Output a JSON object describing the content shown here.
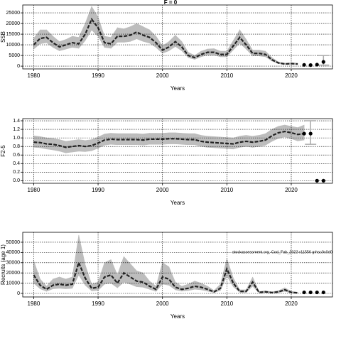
{
  "chart_data": [
    {
      "type": "band-line",
      "title": "F = 0",
      "xlabel": "Years",
      "ylabel": "SSB",
      "x": [
        1980,
        1981,
        1982,
        1983,
        1984,
        1985,
        1986,
        1987,
        1988,
        1989,
        1990,
        1991,
        1992,
        1993,
        1994,
        1995,
        1996,
        1997,
        1998,
        1999,
        2000,
        2001,
        2002,
        2003,
        2004,
        2005,
        2006,
        2007,
        2008,
        2009,
        2010,
        2011,
        2012,
        2013,
        2014,
        2015,
        2016,
        2017,
        2018,
        2019,
        2020,
        2021
      ],
      "values": [
        10000,
        13000,
        13500,
        11000,
        9000,
        10000,
        11000,
        10500,
        15000,
        22000,
        18000,
        11000,
        10500,
        14000,
        14000,
        14500,
        16000,
        14500,
        13500,
        11000,
        7500,
        9000,
        11500,
        9000,
        5000,
        4000,
        5500,
        6500,
        6500,
        5500,
        5500,
        9500,
        13500,
        10000,
        6000,
        6000,
        5500,
        3000,
        1500,
        1000,
        1200,
        1000
      ],
      "lower": [
        8000,
        10500,
        11000,
        8800,
        7200,
        8000,
        8800,
        8400,
        12000,
        17000,
        14000,
        8800,
        8400,
        11200,
        11200,
        11600,
        12800,
        11600,
        10800,
        8800,
        6000,
        7200,
        9200,
        7200,
        4000,
        3200,
        4400,
        5200,
        5200,
        4400,
        4400,
        7600,
        10800,
        8000,
        4800,
        4800,
        4400,
        2400,
        1200,
        800,
        900,
        700
      ],
      "upper": [
        13000,
        17000,
        17000,
        14000,
        11500,
        12500,
        14000,
        13500,
        20000,
        28000,
        23000,
        14000,
        13500,
        18000,
        17500,
        18500,
        20000,
        18500,
        17000,
        14000,
        9500,
        11500,
        14500,
        11500,
        6500,
        5000,
        7000,
        8000,
        8200,
        7000,
        7000,
        12000,
        17000,
        12500,
        7500,
        7500,
        7000,
        4000,
        2000,
        1400,
        1600,
        1400
      ],
      "points_x": [
        2022,
        2023,
        2024,
        2025
      ],
      "points": [
        600,
        500,
        700,
        2000
      ],
      "errorbar": {
        "x": 2025,
        "low": 500,
        "high": 5000
      },
      "xlim": [
        1978.3,
        2026.4
      ],
      "xticks": [
        1980,
        1990,
        2000,
        2010,
        2020
      ],
      "ylim": [
        -1300,
        28700
      ],
      "yticks": [
        0,
        5000,
        10000,
        15000,
        20000,
        25000
      ],
      "grid": true,
      "line_color": "#222222",
      "band_color": "#bdbdbd",
      "point_color": "#000000"
    },
    {
      "type": "band-line",
      "xlabel": "Years",
      "ylabel": "F2-5",
      "x": [
        1980,
        1981,
        1982,
        1983,
        1984,
        1985,
        1986,
        1987,
        1988,
        1989,
        1990,
        1991,
        1992,
        1993,
        1994,
        1995,
        1996,
        1997,
        1998,
        1999,
        2000,
        2001,
        2002,
        2003,
        2004,
        2005,
        2006,
        2007,
        2008,
        2009,
        2010,
        2011,
        2012,
        2013,
        2014,
        2015,
        2016,
        2017,
        2018,
        2019,
        2020,
        2021,
        2022
      ],
      "values": [
        0.9,
        0.89,
        0.86,
        0.85,
        0.82,
        0.78,
        0.8,
        0.82,
        0.8,
        0.82,
        0.88,
        0.95,
        0.97,
        0.96,
        0.96,
        0.96,
        0.96,
        0.95,
        0.97,
        0.97,
        0.97,
        0.98,
        0.98,
        0.97,
        0.96,
        0.96,
        0.92,
        0.9,
        0.89,
        0.88,
        0.87,
        0.86,
        0.9,
        0.92,
        0.9,
        0.92,
        0.95,
        1.05,
        1.12,
        1.15,
        1.12,
        1.08,
        1.1
      ],
      "lower": [
        0.78,
        0.77,
        0.74,
        0.72,
        0.69,
        0.65,
        0.67,
        0.69,
        0.68,
        0.7,
        0.76,
        0.83,
        0.85,
        0.84,
        0.84,
        0.84,
        0.84,
        0.83,
        0.85,
        0.85,
        0.85,
        0.86,
        0.86,
        0.85,
        0.84,
        0.84,
        0.8,
        0.78,
        0.77,
        0.76,
        0.75,
        0.74,
        0.78,
        0.8,
        0.78,
        0.8,
        0.83,
        0.92,
        0.99,
        1.02,
        0.98,
        0.93,
        0.95
      ],
      "upper": [
        1.05,
        1.03,
        1.0,
        0.99,
        0.96,
        0.92,
        0.94,
        0.96,
        0.94,
        0.96,
        1.02,
        1.09,
        1.11,
        1.1,
        1.1,
        1.1,
        1.1,
        1.09,
        1.11,
        1.11,
        1.11,
        1.12,
        1.12,
        1.11,
        1.1,
        1.1,
        1.06,
        1.04,
        1.03,
        1.02,
        1.01,
        1.0,
        1.04,
        1.06,
        1.04,
        1.06,
        1.1,
        1.2,
        1.27,
        1.3,
        1.27,
        1.24,
        1.3
      ],
      "points_x": [
        2022,
        2023,
        2024,
        2025
      ],
      "points": [
        1.1,
        1.1,
        0,
        0
      ],
      "errorbar": {
        "x": 2023,
        "low": 0.85,
        "high": 1.4
      },
      "xlim": [
        1978.3,
        2026.4
      ],
      "xticks": [
        1980,
        1990,
        2000,
        2010,
        2020
      ],
      "ylim": [
        -0.06,
        1.45
      ],
      "yticks": [
        {
          "value": 0,
          "label": "0.0"
        },
        {
          "value": 0.2,
          "label": "0.2"
        },
        {
          "value": 0.4,
          "label": "0.4"
        },
        {
          "value": 0.6,
          "label": "0.6"
        },
        {
          "value": 0.8,
          "label": "0.8"
        },
        {
          "value": 1,
          "label": "1.0"
        },
        {
          "value": 1.2,
          "label": "1.2"
        },
        {
          "value": 1.4,
          "label": "1.4"
        }
      ],
      "grid": true,
      "line_color": "#222222",
      "band_color": "#bdbdbd",
      "point_color": "#000000"
    },
    {
      "type": "band-line",
      "xlabel": "Years",
      "ylabel": "Recruits (age 1)",
      "annotation": "stockassessment.org, Cod_Fab_2023 r11556 grhsc0c0d0c0dd",
      "x": [
        1980,
        1981,
        1982,
        1983,
        1984,
        1985,
        1986,
        1987,
        1988,
        1989,
        1990,
        1991,
        1992,
        1993,
        1994,
        1995,
        1996,
        1997,
        1998,
        1999,
        2000,
        2001,
        2002,
        2003,
        2004,
        2005,
        2006,
        2007,
        2008,
        2009,
        2010,
        2011,
        2012,
        2013,
        2014,
        2015,
        2016,
        2017,
        2018,
        2019,
        2020,
        2021
      ],
      "values": [
        18000,
        8000,
        4000,
        8000,
        9000,
        8000,
        9000,
        30000,
        15000,
        5000,
        6000,
        16000,
        18000,
        10000,
        20000,
        16000,
        12000,
        11000,
        7000,
        4000,
        16000,
        14000,
        6000,
        4000,
        5000,
        7000,
        6000,
        4000,
        1500,
        5000,
        24000,
        10000,
        2000,
        2000,
        11000,
        1000,
        1500,
        800,
        1500,
        3500,
        1000,
        500
      ],
      "lower": [
        10000,
        4500,
        2000,
        4500,
        5000,
        4500,
        5000,
        18000,
        8000,
        2500,
        3000,
        9000,
        10000,
        5500,
        11000,
        9000,
        6500,
        6000,
        4000,
        2000,
        9000,
        8000,
        3500,
        2200,
        2800,
        4000,
        3500,
        2200,
        800,
        2800,
        17000,
        6500,
        1000,
        1000,
        7000,
        500,
        800,
        400,
        800,
        2000,
        500,
        200
      ],
      "upper": [
        32000,
        14000,
        7000,
        14000,
        16000,
        14000,
        16000,
        57000,
        28000,
        9000,
        11000,
        30000,
        33000,
        18000,
        36000,
        29000,
        22000,
        20000,
        12000,
        7000,
        30000,
        26000,
        11000,
        7000,
        9000,
        12000,
        10000,
        7000,
        2800,
        9000,
        34000,
        15000,
        3500,
        3500,
        16000,
        1800,
        2700,
        1500,
        2700,
        5500,
        2000,
        1200
      ],
      "points_x": [
        2022,
        2023,
        2024,
        2025
      ],
      "points": [
        1000,
        1000,
        1000,
        1000
      ],
      "xlim": [
        1978.3,
        2026.4
      ],
      "xticks": [
        1980,
        1990,
        2000,
        2010,
        2020
      ],
      "ylim": [
        -3470,
        59700
      ],
      "yticks": [
        0,
        10000,
        20000,
        30000,
        40000,
        50000
      ],
      "grid": true,
      "line_color": "#222222",
      "band_color": "#bdbdbd",
      "point_color": "#000000"
    }
  ]
}
